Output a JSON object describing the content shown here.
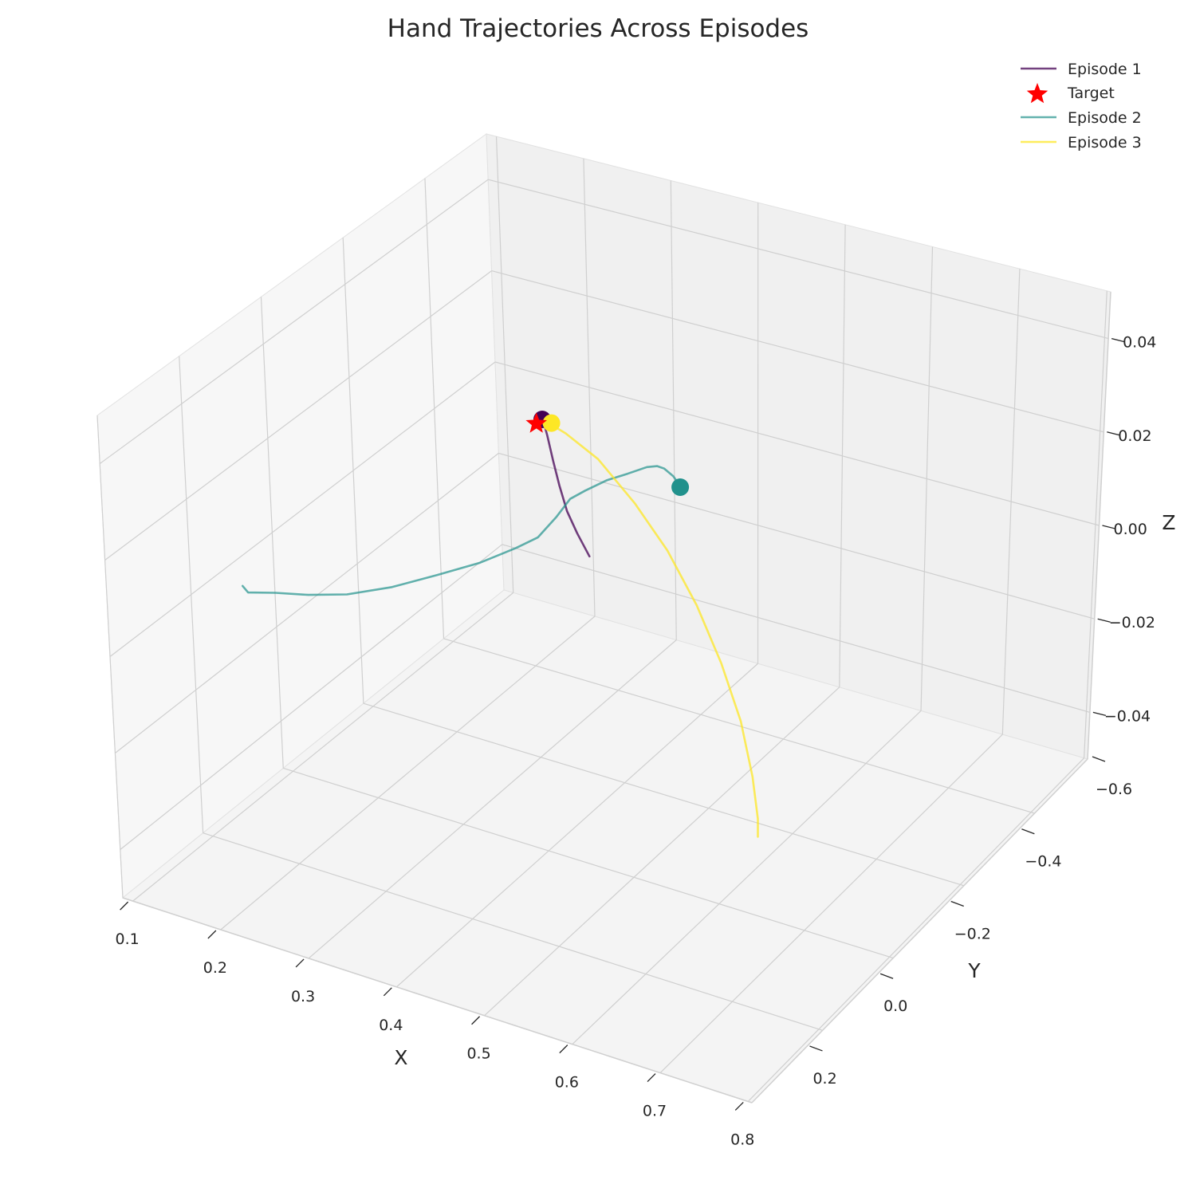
{
  "chart_data": {
    "type": "line3d",
    "title": "Hand Trajectories Across Episodes",
    "xlabel": "X",
    "ylabel": "Y",
    "zlabel": "Z",
    "xlim": [
      0.1,
      0.8
    ],
    "ylim": [
      -0.6,
      0.35
    ],
    "zlim": [
      -0.05,
      0.05
    ],
    "xticks": [
      "0.1",
      "0.2",
      "0.3",
      "0.4",
      "0.5",
      "0.6",
      "0.7",
      "0.8"
    ],
    "yticks": [
      "−0.6",
      "−0.4",
      "−0.2",
      "0.0",
      "0.2"
    ],
    "zticks": [
      "−0.04",
      "−0.02",
      "0.00",
      "0.02",
      "0.04"
    ],
    "legend_position": "top-right",
    "target": {
      "name": "Target",
      "color": "#ff0000",
      "x": 0.302,
      "y": 0.001,
      "z": 0.024
    },
    "series": [
      {
        "name": "Episode 1",
        "color": "#440154",
        "points": [
          [
            0.358,
            -0.002,
            -0.001
          ],
          [
            0.344,
            0.0,
            0.003
          ],
          [
            0.333,
            0.001,
            0.007
          ],
          [
            0.325,
            0.002,
            0.012
          ],
          [
            0.319,
            0.002,
            0.017
          ],
          [
            0.313,
            0.003,
            0.022
          ],
          [
            0.309,
            0.003,
            0.025
          ],
          [
            0.307,
            0.003,
            0.026
          ],
          [
            0.302,
            0.002,
            0.025
          ]
        ]
      },
      {
        "name": "Episode 2",
        "color": "#21918c",
        "points": [
          [
            0.1,
            -0.3,
            -0.004
          ],
          [
            0.106,
            -0.3,
            -0.005
          ],
          [
            0.128,
            -0.28,
            -0.005
          ],
          [
            0.156,
            -0.26,
            -0.005
          ],
          [
            0.191,
            -0.24,
            -0.004
          ],
          [
            0.229,
            -0.21,
            -0.002
          ],
          [
            0.267,
            -0.18,
            0.001
          ],
          [
            0.303,
            -0.15,
            0.004
          ],
          [
            0.331,
            -0.12,
            0.007
          ],
          [
            0.347,
            -0.1,
            0.009
          ],
          [
            0.355,
            -0.07,
            0.012
          ],
          [
            0.362,
            -0.05,
            0.015
          ],
          [
            0.375,
            -0.04,
            0.017
          ],
          [
            0.391,
            -0.02,
            0.019
          ],
          [
            0.41,
            -0.01,
            0.021
          ],
          [
            0.428,
            0.0,
            0.023
          ],
          [
            0.44,
            0.0,
            0.024
          ],
          [
            0.448,
            0.0,
            0.024
          ],
          [
            0.458,
            0.0,
            0.023
          ],
          [
            0.467,
            0.0,
            0.021
          ]
        ]
      },
      {
        "name": "Episode 3",
        "color": "#fde725",
        "points": [
          [
            0.313,
            0.003,
            0.025
          ],
          [
            0.335,
            0.002,
            0.024
          ],
          [
            0.372,
            0.0,
            0.021
          ],
          [
            0.417,
            -0.01,
            0.015
          ],
          [
            0.457,
            -0.02,
            0.008
          ],
          [
            0.493,
            -0.03,
            -0.001
          ],
          [
            0.523,
            -0.04,
            -0.011
          ],
          [
            0.545,
            -0.045,
            -0.022
          ],
          [
            0.558,
            -0.05,
            -0.033
          ],
          [
            0.562,
            -0.05,
            -0.042
          ],
          [
            0.561,
            -0.05,
            -0.046
          ]
        ]
      }
    ],
    "markers": [
      {
        "series": "Episode 1",
        "color": "#440154",
        "x": 0.307,
        "y": 0.005,
        "z": 0.025
      },
      {
        "series": "Episode 3",
        "color": "#fde725",
        "x": 0.318,
        "y": 0.004,
        "z": 0.025
      },
      {
        "series": "Episode 2",
        "color": "#21918c",
        "x": 0.465,
        "y": 0.001,
        "z": 0.021
      }
    ]
  }
}
